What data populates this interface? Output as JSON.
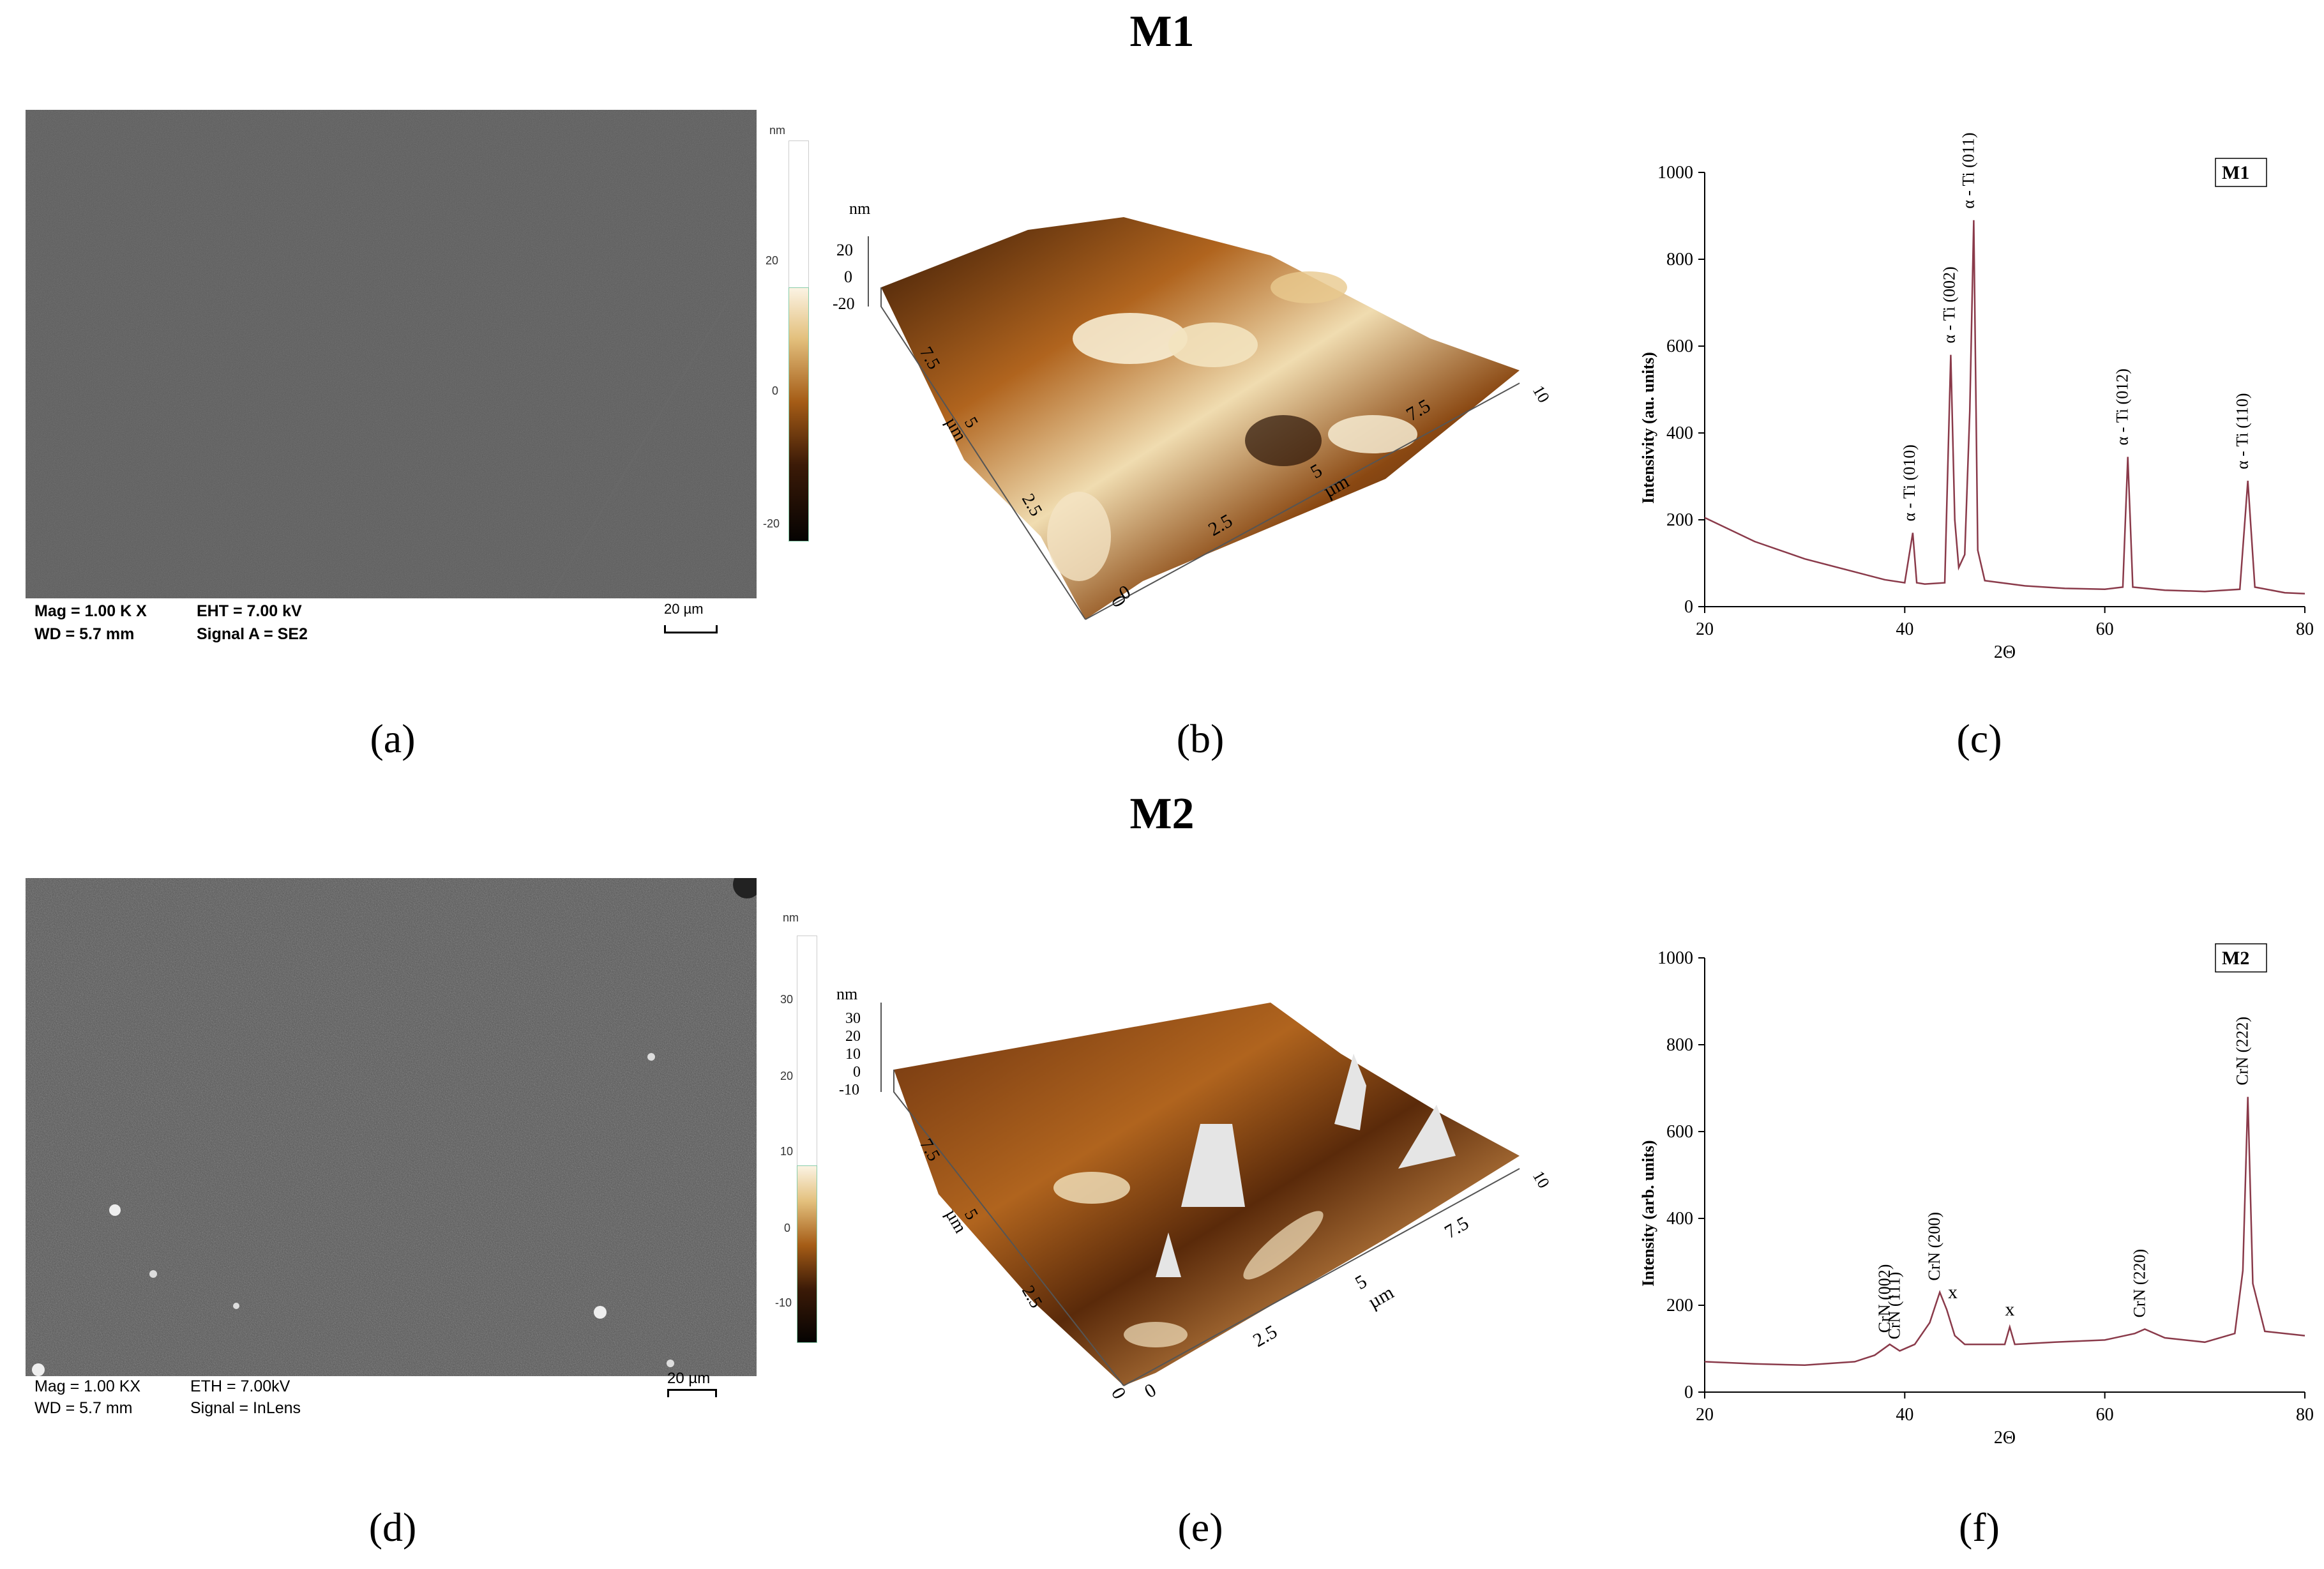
{
  "rows": [
    {
      "title": "M1",
      "sem": {
        "mag": "Mag = 1.00 K X",
        "wd": "WD = 5.7 mm",
        "eht": "EHT = 7.00 kV",
        "signal": "Signal A = SE2",
        "scalebar": "20 µm"
      },
      "colorbar": {
        "unit": "nm",
        "ticks": [
          "20",
          "0",
          "-20"
        ]
      },
      "afm": {
        "z_unit": "nm",
        "z_ticks": [
          "20",
          "0",
          "-20"
        ],
        "x_ticks": [
          "0",
          "2.5",
          "5",
          "7.5",
          "10"
        ],
        "y_ticks": [
          "0",
          "2.5",
          "5",
          "7.5"
        ],
        "axis_unit": "µm"
      },
      "captions": [
        "(a)",
        "(b)",
        "(c)"
      ]
    },
    {
      "title": "M2",
      "sem": {
        "mag": "Mag = 1.00 KX",
        "wd": "WD = 5.7 mm",
        "eht": "ETH = 7.00kV",
        "signal": "Signal = InLens",
        "scalebar": "20 µm"
      },
      "colorbar": {
        "unit": "nm",
        "ticks": [
          "30",
          "20",
          "10",
          "0",
          "-10"
        ]
      },
      "afm": {
        "z_unit": "nm",
        "z_ticks": [
          "30",
          "20",
          "10",
          "0",
          "-10"
        ],
        "x_ticks": [
          "0",
          "2.5",
          "5",
          "7.5",
          "10"
        ],
        "y_ticks": [
          "0",
          "2.5",
          "5",
          "7.5"
        ],
        "axis_unit": "µm"
      },
      "captions": [
        "(d)",
        "(e)",
        "(f)"
      ]
    }
  ],
  "colors": {
    "xrd_line": "#8a3a4a",
    "sem_bg": "#555555",
    "afm_light": "#f5e6c8",
    "afm_mid": "#b0641e",
    "afm_dark": "#1e0c04"
  },
  "chart_data": [
    {
      "type": "line",
      "legend": "M1",
      "xlabel": "2Θ",
      "ylabel": "Intensivity (au. units)",
      "xlim": [
        20,
        80
      ],
      "ylim": [
        0,
        1000
      ],
      "xticks": [
        20,
        40,
        60,
        80
      ],
      "yticks": [
        0,
        200,
        400,
        600,
        800,
        1000
      ],
      "x": [
        20,
        25,
        30,
        35,
        38,
        40,
        40.8,
        41.2,
        42,
        44,
        44.6,
        45,
        45.4,
        46,
        46.5,
        46.9,
        47.3,
        48,
        52,
        56,
        60,
        61.8,
        62.3,
        62.8,
        66,
        70,
        73.5,
        74.3,
        75,
        78,
        80
      ],
      "y": [
        205,
        150,
        110,
        80,
        62,
        55,
        170,
        55,
        52,
        55,
        580,
        200,
        90,
        120,
        450,
        890,
        130,
        60,
        48,
        42,
        40,
        45,
        345,
        45,
        38,
        35,
        40,
        290,
        45,
        32,
        30
      ],
      "annotations": [
        {
          "x": 41,
          "text": "α - Ti (010)"
        },
        {
          "x": 45,
          "text": "α - Ti (002)"
        },
        {
          "x": 46.9,
          "text": "α - Ti (011)"
        },
        {
          "x": 62.3,
          "text": "α - Ti (012)"
        },
        {
          "x": 74.3,
          "text": "α - Ti (110)"
        }
      ]
    },
    {
      "type": "line",
      "legend": "M2",
      "xlabel": "2Θ",
      "ylabel": "Intensity (arb. units)",
      "xlim": [
        20,
        80
      ],
      "ylim": [
        0,
        1000
      ],
      "xticks": [
        20,
        40,
        60,
        80
      ],
      "yticks": [
        0,
        200,
        400,
        600,
        800,
        1000
      ],
      "x": [
        20,
        25,
        30,
        35,
        37,
        38.5,
        39.5,
        41,
        42.5,
        43.5,
        44.2,
        45,
        46,
        50,
        50.5,
        51,
        55,
        60,
        63,
        64,
        66,
        70,
        73,
        73.8,
        74.3,
        74.8,
        76,
        80
      ],
      "y": [
        70,
        65,
        62,
        70,
        85,
        110,
        95,
        110,
        160,
        230,
        190,
        130,
        110,
        110,
        150,
        110,
        115,
        120,
        135,
        145,
        125,
        115,
        135,
        280,
        680,
        250,
        140,
        130
      ],
      "annotations": [
        {
          "x": 38.5,
          "text": "CrN (002)"
        },
        {
          "x": 39.5,
          "text": "CrN (111)"
        },
        {
          "x": 43.5,
          "text": "CrN (200)"
        },
        {
          "x": 44.8,
          "text": "x"
        },
        {
          "x": 50.5,
          "text": "x"
        },
        {
          "x": 64,
          "text": "CrN (220)"
        },
        {
          "x": 74.3,
          "text": "CrN (222)"
        }
      ]
    }
  ]
}
